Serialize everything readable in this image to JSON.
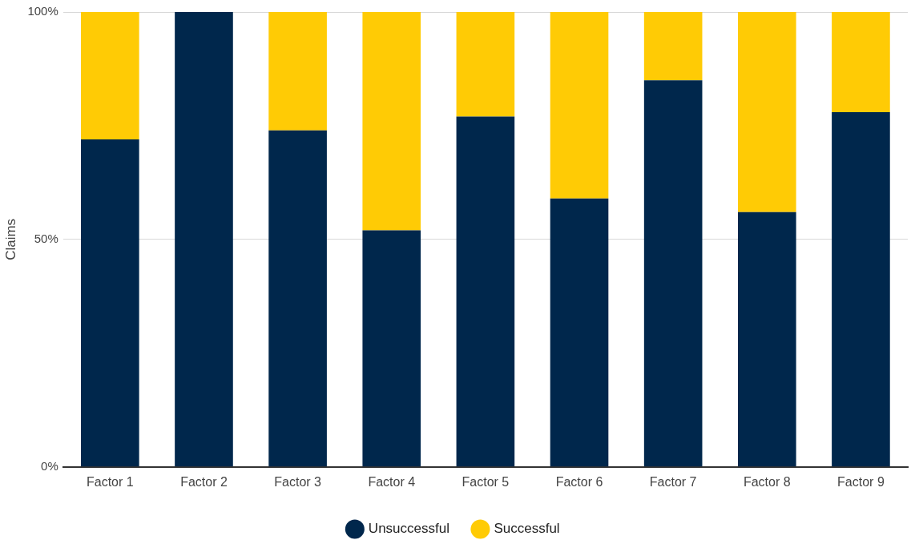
{
  "chart_data": {
    "type": "bar",
    "stacked": true,
    "ylabel": "Claims",
    "categories": [
      "Factor 1",
      "Factor 2",
      "Factor 3",
      "Factor 4",
      "Factor 5",
      "Factor 6",
      "Factor 7",
      "Factor 8",
      "Factor 9"
    ],
    "series": [
      {
        "name": "Unsuccessful",
        "color": "#00274c",
        "values": [
          72,
          100,
          74,
          52,
          77,
          59,
          85,
          56,
          78
        ]
      },
      {
        "name": "Successful",
        "color": "#ffcb05",
        "values": [
          28,
          0,
          26,
          48,
          23,
          41,
          15,
          44,
          22
        ]
      }
    ],
    "ylim": [
      0,
      100
    ],
    "yticks": [
      {
        "value": 0,
        "label": "0%"
      },
      {
        "value": 50,
        "label": "50%"
      },
      {
        "value": 100,
        "label": "100%"
      }
    ],
    "grid": "y",
    "legend": "bottom"
  }
}
